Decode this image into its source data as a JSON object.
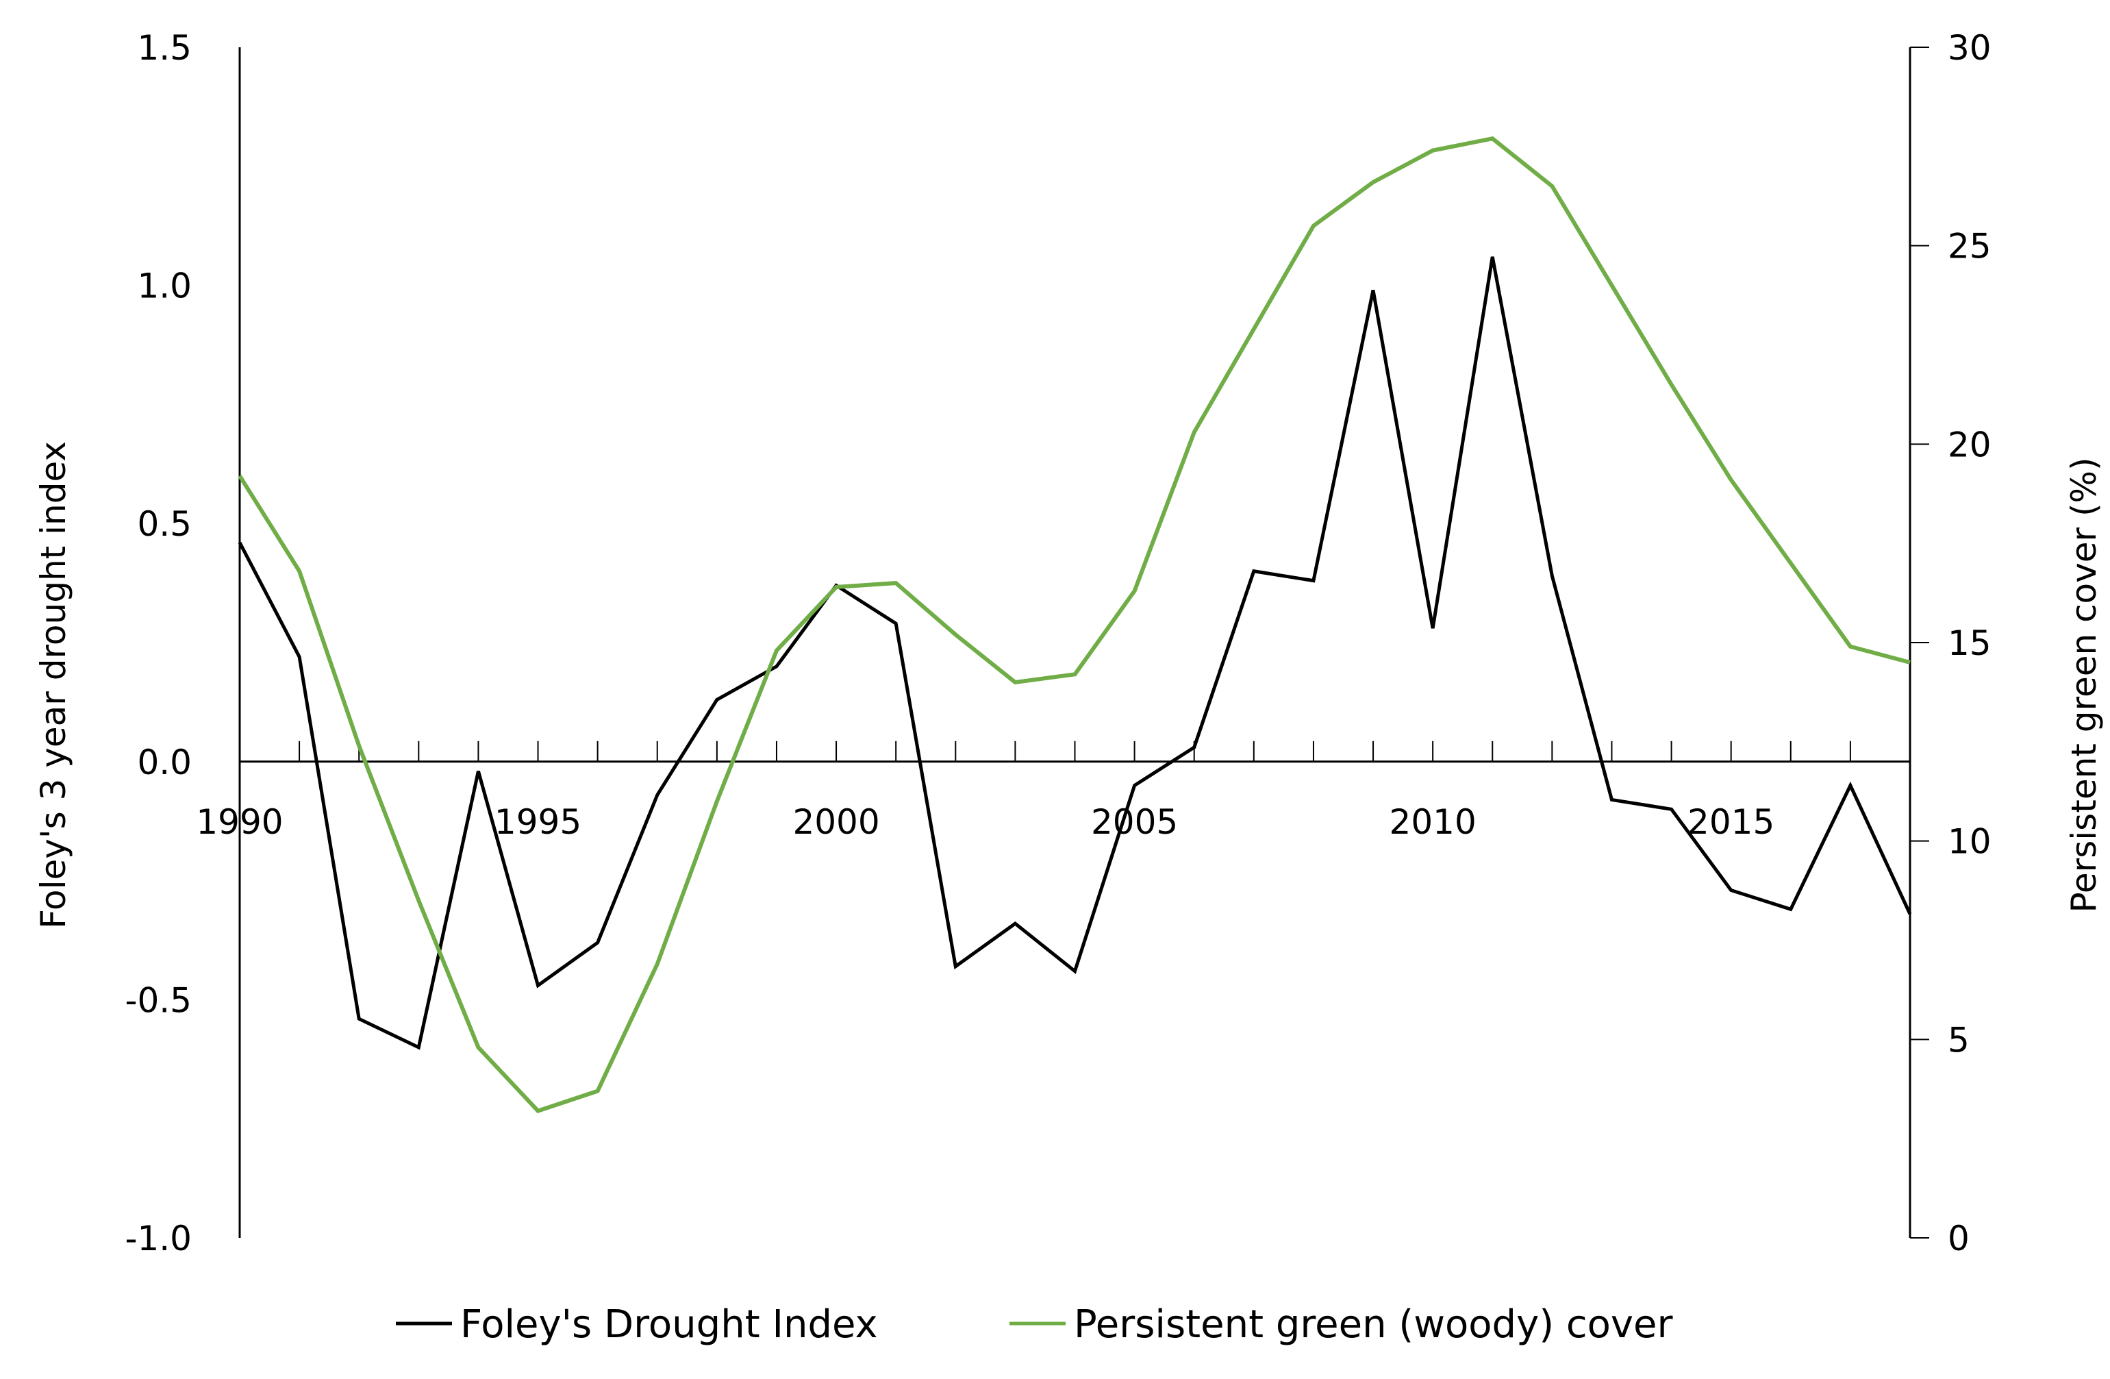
{
  "chart_data": {
    "type": "line",
    "title": "",
    "xlabel": "",
    "ylabel": "Foley's 3 year drought index",
    "y2label": "Persistent green cover (%)",
    "ylim": [
      -1.0,
      1.5
    ],
    "y2lim": [
      0,
      30
    ],
    "xlim": [
      1990,
      2018
    ],
    "grid": false,
    "legend_position": "bottom",
    "y_ticks": [
      "-1.0",
      "-0.5",
      "0.0",
      "0.5",
      "1.0",
      "1.5"
    ],
    "y2_ticks": [
      "0",
      "5",
      "10",
      "15",
      "20",
      "25",
      "30"
    ],
    "x_ticks": [
      "1990",
      "1995",
      "2000",
      "2005",
      "2010",
      "2015"
    ],
    "x": [
      1990,
      1991,
      1992,
      1993,
      1994,
      1995,
      1996,
      1997,
      1998,
      1999,
      2000,
      2001,
      2002,
      2003,
      2004,
      2005,
      2006,
      2007,
      2008,
      2009,
      2010,
      2011,
      2012,
      2013,
      2014,
      2015,
      2016,
      2017,
      2018
    ],
    "series": [
      {
        "name": "Foley's Drought Index",
        "axis": "left",
        "color": "#000000",
        "values": [
          0.46,
          0.22,
          -0.54,
          -0.6,
          -0.02,
          -0.47,
          -0.38,
          -0.07,
          0.13,
          0.2,
          0.37,
          0.29,
          -0.43,
          -0.34,
          -0.44,
          -0.05,
          0.03,
          0.4,
          0.38,
          0.99,
          0.28,
          1.06,
          0.39,
          -0.08,
          -0.1,
          -0.27,
          -0.31,
          -0.05,
          -0.32
        ]
      },
      {
        "name": "Persistent green (woody) cover",
        "axis": "right",
        "color": "#70AD47",
        "values": [
          19.2,
          16.8,
          12.4,
          8.5,
          4.8,
          3.2,
          3.7,
          6.9,
          11.0,
          14.8,
          16.4,
          16.5,
          15.2,
          14.0,
          14.2,
          16.3,
          20.3,
          22.9,
          25.5,
          26.6,
          27.4,
          27.7,
          26.5,
          24.0,
          21.5,
          19.1,
          17.0,
          14.9,
          14.5
        ]
      }
    ]
  }
}
